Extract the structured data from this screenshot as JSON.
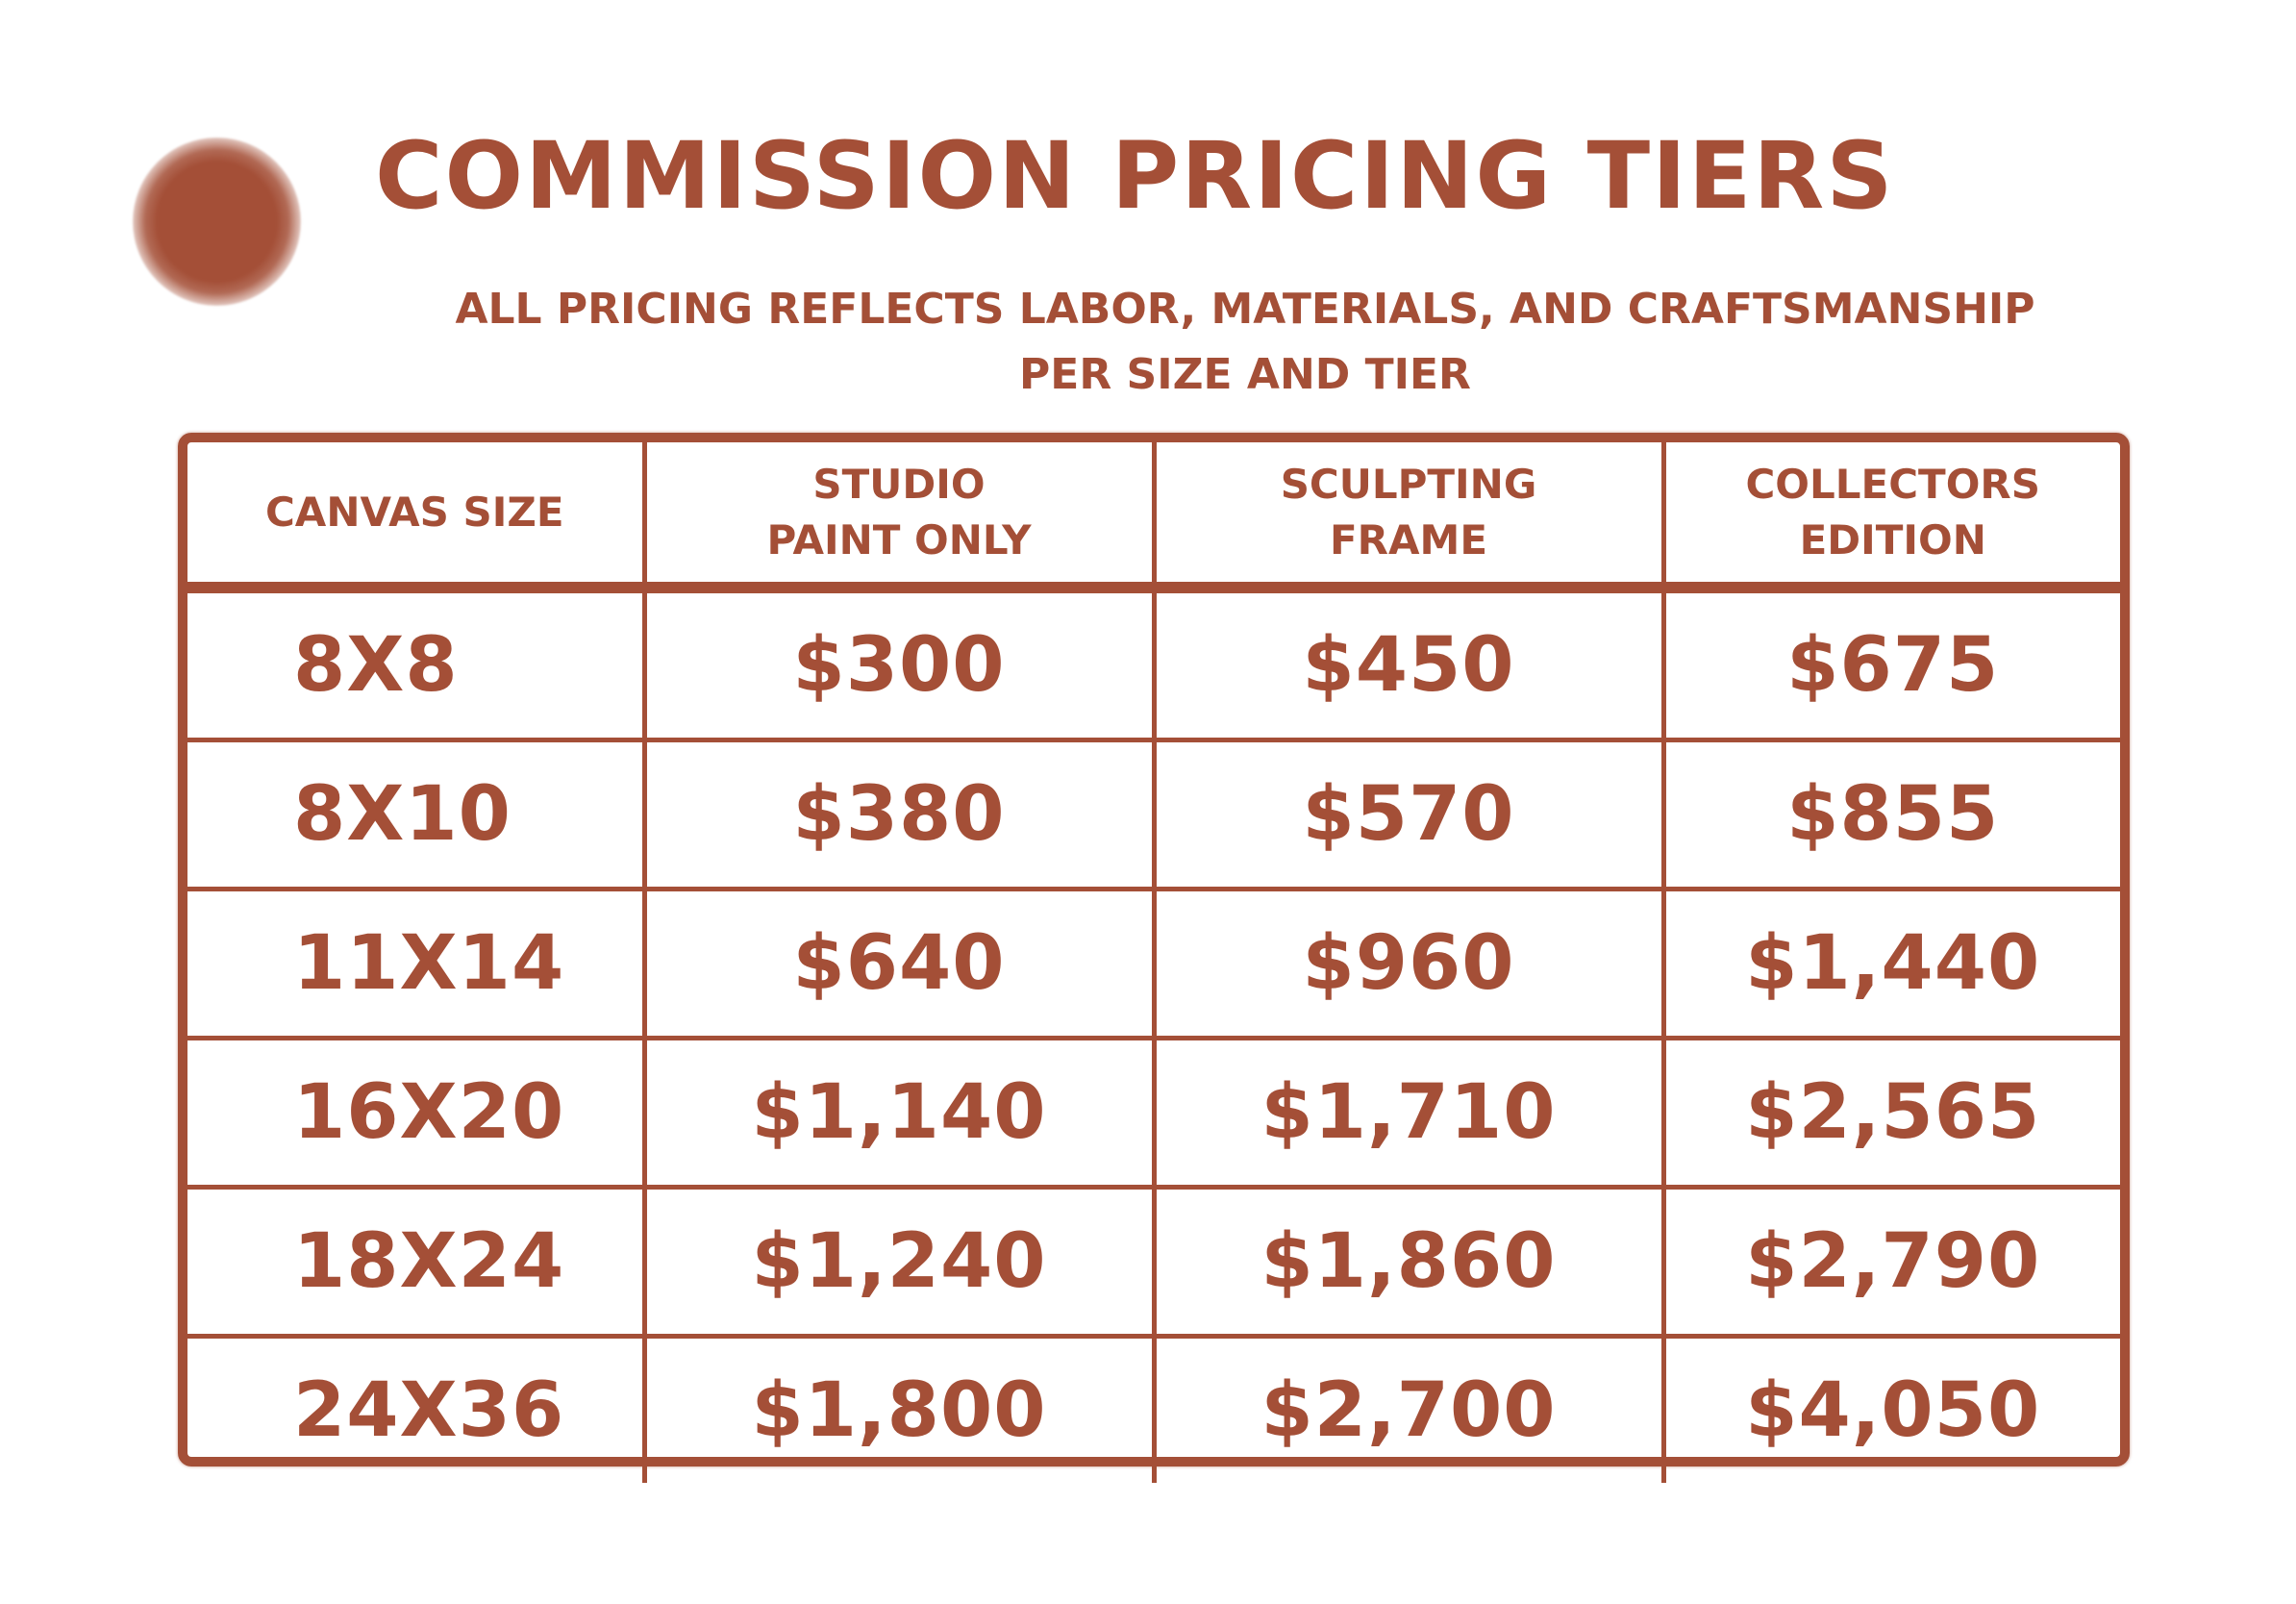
{
  "page": {
    "title": "COMMISSION PRICING TIERS",
    "subtitle_line1": "ALL PRICING REFLECTS LABOR, MATERIALS, AND CRAFTSMANSHIP",
    "subtitle_line2": "PER SIZE AND TIER"
  },
  "colors": {
    "accent": "#a44f37",
    "background": "#ffffff"
  },
  "table": {
    "headers": [
      {
        "line1": "CANVAS SIZE",
        "line2": ""
      },
      {
        "line1": "STUDIO",
        "line2": "PAINT ONLY"
      },
      {
        "line1": "SCULPTING",
        "line2": "FRAME"
      },
      {
        "line1": "COLLECTORS",
        "line2": "EDITION"
      }
    ],
    "rows": [
      {
        "size": "8X8",
        "studio": "$300",
        "sculpting": "$450",
        "collectors": "$675"
      },
      {
        "size": "8X10",
        "studio": "$380",
        "sculpting": "$570",
        "collectors": "$855"
      },
      {
        "size": "11X14",
        "studio": "$640",
        "sculpting": "$960",
        "collectors": "$1,440"
      },
      {
        "size": "16X20",
        "studio": "$1,140",
        "sculpting": "$1,710",
        "collectors": "$2,565"
      },
      {
        "size": "18X24",
        "studio": "$1,240",
        "sculpting": "$1,860",
        "collectors": "$2,790"
      },
      {
        "size": "24X36",
        "studio": "$1,800",
        "sculpting": "$2,700",
        "collectors": "$4,050"
      }
    ]
  }
}
